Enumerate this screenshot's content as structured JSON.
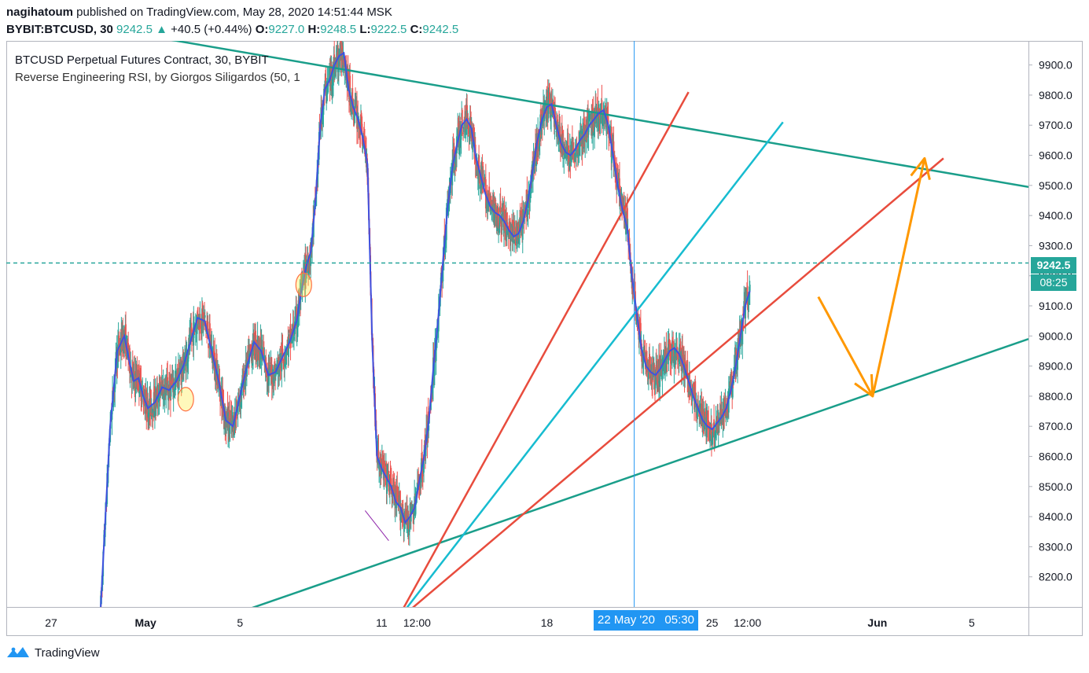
{
  "header": {
    "author": "nagihatoum",
    "published_text": "published on TradingView.com, May 28, 2020 14:51:44 MSK",
    "symbol": "BYBIT:BTCUSD, 30",
    "last": "9242.5",
    "change_arrow": "▲",
    "change": "+40.5 (+0.44%)",
    "o_label": "O:",
    "o": "9227.0",
    "h_label": "H:",
    "h": "9248.5",
    "l_label": "L:",
    "l": "9222.5",
    "c_label": "C:",
    "c": "9242.5"
  },
  "legend": {
    "line1": "BTCUSD Perpetual Futures Contract, 30, BYBIT",
    "line2": "Reverse Engineering RSI, by Giorgos Siligardos (50, 1"
  },
  "price_tags": {
    "last": "9242.5",
    "countdown": "08:25"
  },
  "crosshair_label": "22 May '20   05:30",
  "footer": {
    "brand": "TradingView"
  },
  "colors": {
    "up": "#26a69a",
    "down": "#ef5350",
    "rsi_line": "#3f51e0",
    "trend_green": "#1a9e8a",
    "trend_red": "#e84c3d",
    "trend_cyan": "#17bcd0",
    "arrow_orange": "#ff9800",
    "crosshair": "#2196f3"
  },
  "chart_data": {
    "type": "line",
    "title": "BTCUSD Perpetual Futures Contract, 30, BYBIT",
    "ylim": [
      8100,
      9980
    ],
    "y_ticks": [
      8200,
      8300,
      8400,
      8500,
      8600,
      8700,
      8800,
      8900,
      9000,
      9100,
      9200,
      9300,
      9400,
      9500,
      9600,
      9700,
      9800,
      9900
    ],
    "y_tick_labels": [
      "8200.0",
      "8300.0",
      "8400.0",
      "8500.0",
      "8600.0",
      "8700.0",
      "8800.0",
      "8900.0",
      "9000.0",
      "9100.0",
      "9200.0",
      "9300.0",
      "9400.0",
      "9500.0",
      "9600.0",
      "9700.0",
      "9800.0",
      "9900.0"
    ],
    "x_tick_labels": [
      "27",
      "May",
      "5",
      "11",
      "12:00",
      "18",
      "25",
      "12:00",
      "Jun",
      "5"
    ],
    "x_tick_days": [
      -3.5,
      0.5,
      4.5,
      10.5,
      12.0,
      17.5,
      24.5,
      26.0,
      31.5,
      35.5
    ],
    "x_range_days": [
      -5.4,
      37.9
    ],
    "last_price": 9242.5,
    "series": [
      {
        "name": "Reverse Engineering RSI",
        "x_days": [
          -1.4,
          -1.2,
          -1.0,
          -0.7,
          -0.4,
          -0.2,
          0.0,
          0.2,
          0.4,
          0.6,
          0.9,
          1.2,
          1.5,
          1.8,
          2.1,
          2.4,
          2.7,
          3.0,
          3.3,
          3.6,
          3.9,
          4.2,
          4.5,
          4.8,
          5.1,
          5.4,
          5.7,
          6.0,
          6.3,
          6.6,
          6.9,
          7.1,
          7.3,
          7.5,
          7.7,
          7.9,
          8.1,
          8.3,
          8.5,
          8.7,
          8.9,
          9.1,
          9.3,
          9.5,
          9.7,
          9.9,
          10.1,
          10.3,
          10.5,
          10.7,
          10.9,
          11.1,
          11.3,
          11.5,
          11.7,
          11.9,
          12.1,
          12.3,
          12.5,
          12.7,
          12.9,
          13.1,
          13.3,
          13.5,
          13.7,
          13.9,
          14.1,
          14.3,
          14.5,
          14.7,
          14.9,
          15.1,
          15.3,
          15.5,
          15.7,
          15.9,
          16.1,
          16.3,
          16.5,
          16.7,
          16.9,
          17.1,
          17.3,
          17.5,
          17.7,
          17.9,
          18.1,
          18.3,
          18.5,
          18.7,
          18.9,
          19.1,
          19.3,
          19.5,
          19.7,
          19.9,
          20.1,
          20.3,
          20.5,
          20.7,
          20.9,
          21.1,
          21.3,
          21.5,
          21.7,
          21.9,
          22.1,
          22.3,
          22.5,
          22.7,
          22.9,
          23.1,
          23.3,
          23.5,
          23.7,
          23.9,
          24.1,
          24.3,
          24.5,
          24.7,
          24.9,
          25.1,
          25.3,
          25.5,
          25.7,
          25.9,
          26.1
        ],
        "y": [
          8100,
          8400,
          8700,
          8950,
          9000,
          8920,
          8850,
          8860,
          8800,
          8760,
          8780,
          8830,
          8820,
          8850,
          8900,
          8980,
          9060,
          9050,
          8950,
          8850,
          8720,
          8700,
          8800,
          8900,
          8980,
          8950,
          8870,
          8880,
          8930,
          8980,
          9050,
          9150,
          9230,
          9280,
          9450,
          9700,
          9820,
          9850,
          9900,
          9930,
          9940,
          9820,
          9760,
          9720,
          9660,
          9570,
          8980,
          8600,
          8560,
          8530,
          8500,
          8450,
          8430,
          8380,
          8400,
          8430,
          8520,
          8600,
          8720,
          8900,
          9060,
          9250,
          9430,
          9560,
          9640,
          9700,
          9720,
          9690,
          9590,
          9530,
          9470,
          9430,
          9410,
          9400,
          9380,
          9350,
          9330,
          9340,
          9380,
          9450,
          9550,
          9650,
          9720,
          9760,
          9770,
          9700,
          9640,
          9610,
          9600,
          9620,
          9650,
          9670,
          9700,
          9720,
          9740,
          9750,
          9700,
          9600,
          9500,
          9420,
          9360,
          9200,
          9080,
          8960,
          8900,
          8880,
          8870,
          8890,
          8920,
          8950,
          8960,
          8940,
          8900,
          8850,
          8800,
          8760,
          8720,
          8700,
          8690,
          8710,
          8730,
          8760,
          8820,
          8900,
          9000,
          9100,
          9150
        ]
      }
    ],
    "trendlines": [
      {
        "color": "green",
        "from": [
          -0.4,
          10010
        ],
        "to": [
          37.9,
          9495
        ]
      },
      {
        "color": "green",
        "from": [
          -0.4,
          7950
        ],
        "to": [
          37.9,
          8990
        ]
      },
      {
        "color": "red",
        "from": [
          11.1,
          8050
        ],
        "to": [
          23.5,
          9810
        ]
      },
      {
        "color": "red",
        "from": [
          11.1,
          8050
        ],
        "to": [
          34.3,
          9590
        ]
      },
      {
        "color": "cyan",
        "from": [
          11.1,
          8050
        ],
        "to": [
          27.5,
          9710
        ]
      }
    ],
    "annotations": [
      {
        "type": "arrow",
        "color": "orange",
        "points": [
          [
            29.0,
            9130
          ],
          [
            31.3,
            8800
          ],
          [
            33.5,
            9590
          ]
        ]
      }
    ]
  }
}
